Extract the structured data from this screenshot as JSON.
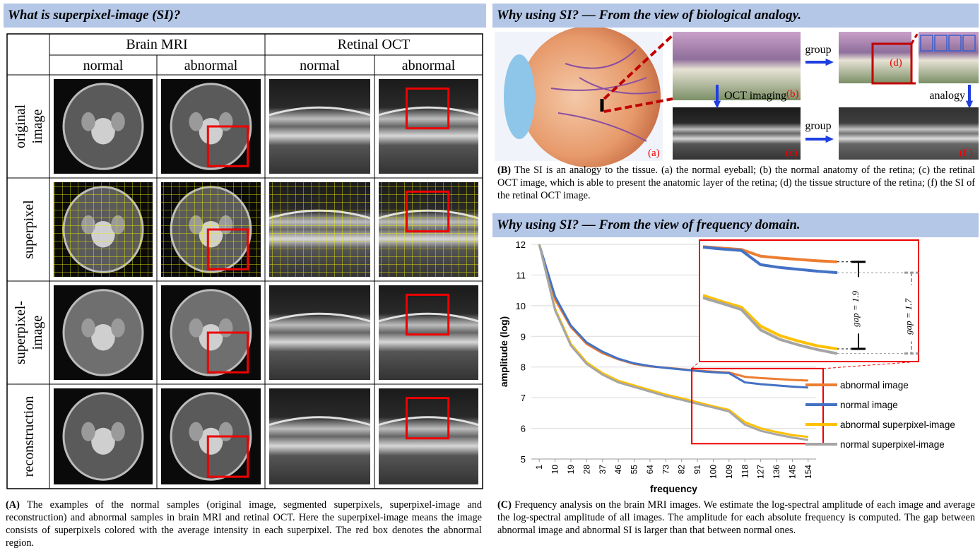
{
  "panel_a": {
    "title": "What is superpixel-image (SI)?",
    "table": {
      "groups": [
        "Brain MRI",
        "Retinal OCT"
      ],
      "columns": [
        "normal",
        "abnormal",
        "normal",
        "abnormal"
      ],
      "rows": [
        [
          "original",
          "image"
        ],
        [
          "superpixel"
        ],
        [
          "superpixel-",
          "image"
        ],
        [
          "reconstruction"
        ]
      ]
    },
    "caption": {
      "label": "(A)",
      "text": "The examples of the normal samples (original image, segmented superpixels, superpixel-image and reconstruction) and abnormal samples in brain MRI and retinal OCT. Here the superpixel-image means the image consists of superpixels colored with the average intensity in each superpixel. The red box denotes the abnormal region."
    }
  },
  "panel_b": {
    "title": "Why using SI? — From the view of biological analogy.",
    "labels": {
      "a": "(a)",
      "b": "(b)",
      "c": "(c)",
      "d": "(d)",
      "f": "(f )",
      "group_top": "group",
      "group_bottom": "group",
      "oct": "OCT imaging",
      "analogy": "analogy"
    },
    "caption": {
      "label": "(B)",
      "text": "The SI is an analogy to the tissue. (a) the normal eyeball; (b) the normal anatomy of the retina; (c) the retinal OCT image, which is able to present the anatomic layer of the retina; (d) the tissue structure of the retina; (f) the SI of the retinal OCT image."
    }
  },
  "panel_c": {
    "title": "Why using SI? — From the view of frequency domain.",
    "caption": {
      "label": "(C)",
      "text": "Frequency analysis on the brain MRI images. We estimate the log-spectral amplitude of each image and average the log-spectral amplitude of all images. The amplitude for each absolute frequency is computed. The gap between abnormal image and abnormal SI is larger than that between normal ones."
    }
  },
  "chart_data": {
    "type": "line",
    "x_label": "frequency",
    "y_label": "amplitude (log)",
    "categories": [
      "1",
      "10",
      "19",
      "28",
      "37",
      "46",
      "55",
      "64",
      "73",
      "82",
      "91",
      "100",
      "109",
      "118",
      "127",
      "136",
      "145",
      "154"
    ],
    "series": [
      {
        "name": "abnormal image",
        "color": "#ed7d31",
        "values": [
          12,
          10.2,
          9.3,
          8.75,
          8.45,
          8.25,
          8.1,
          8.02,
          7.98,
          7.93,
          7.88,
          7.85,
          7.82,
          7.68,
          7.64,
          7.61,
          7.58,
          7.56
        ]
      },
      {
        "name": "normal image",
        "color": "#4472c4",
        "values": [
          12,
          10.3,
          9.35,
          8.8,
          8.5,
          8.27,
          8.12,
          8.03,
          7.97,
          7.92,
          7.87,
          7.83,
          7.8,
          7.5,
          7.44,
          7.4,
          7.36,
          7.33
        ]
      },
      {
        "name": "abnormal superpixel-image",
        "color": "#ffc000",
        "values": [
          12,
          9.9,
          8.75,
          8.15,
          7.8,
          7.55,
          7.4,
          7.25,
          7.1,
          6.98,
          6.85,
          6.72,
          6.6,
          6.2,
          6.0,
          5.88,
          5.78,
          5.72
        ]
      },
      {
        "name": "normal superpixel-image",
        "color": "#a5a5a5",
        "values": [
          12,
          9.85,
          8.7,
          8.1,
          7.75,
          7.5,
          7.35,
          7.2,
          7.05,
          6.93,
          6.8,
          6.68,
          6.55,
          6.12,
          5.92,
          5.8,
          5.7,
          5.62
        ]
      }
    ],
    "ylim": [
      5,
      12
    ],
    "yticks": [
      5,
      6,
      7,
      8,
      9,
      10,
      11,
      12
    ],
    "grid": true,
    "legend": "right",
    "annotations": [
      "gap = 1.9",
      "gap = 1.7"
    ]
  }
}
